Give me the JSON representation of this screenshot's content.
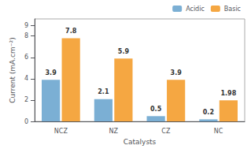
{
  "chart_data": {
    "type": "bar",
    "categories": [
      "NCZ",
      "NZ",
      "CZ",
      "NC"
    ],
    "series": [
      {
        "name": "Acidic",
        "color": "#7bafd4",
        "values": [
          3.9,
          2.1,
          0.5,
          0.2
        ]
      },
      {
        "name": "Basic",
        "color": "#f5a742",
        "values": [
          7.8,
          5.9,
          3.9,
          1.98
        ]
      }
    ],
    "xlabel": "Catalysts",
    "ylabel": "Current (mA.cm⁻²)",
    "ylim": [
      0,
      9.6
    ],
    "yticks": [
      0,
      2,
      4,
      6,
      8,
      9
    ],
    "grid": false,
    "legend": "upper right",
    "data_labels": true
  }
}
